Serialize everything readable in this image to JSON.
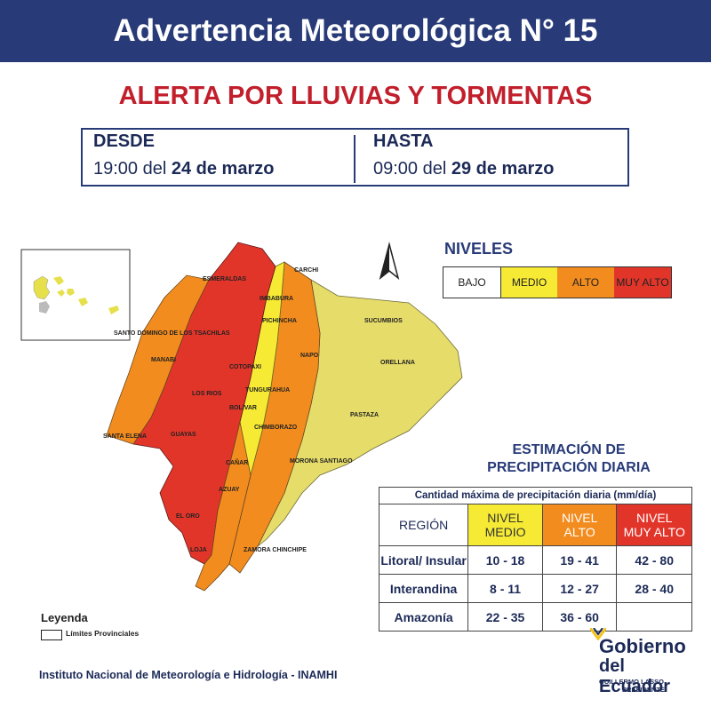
{
  "header": {
    "title": "Advertencia Meteorológica N° 15"
  },
  "alert": {
    "title": "ALERTA POR LLUVIAS Y TORMENTAS"
  },
  "dates": {
    "from_label": "DESDE",
    "from_time": "19:00 del ",
    "from_date": "24 de marzo",
    "to_label": "HASTA",
    "to_time": "09:00 del ",
    "to_date": "29 de marzo"
  },
  "niveles": {
    "title": "NIVELES",
    "levels": [
      {
        "label": "BAJO",
        "color": "#ffffff"
      },
      {
        "label": "MEDIO",
        "color": "#f6ea35"
      },
      {
        "label": "ALTO",
        "color": "#f28c1e"
      },
      {
        "label": "MUY ALTO",
        "color": "#e2352a"
      }
    ]
  },
  "provinces": {
    "carchi": "CARCHI",
    "esmeraldas": "ESMERALDAS",
    "imbabura": "IMBABURA",
    "sucumbios": "SUCUMBIOS",
    "pichincha": "PICHINCHA",
    "santo_domingo": "SANTO DOMINGO DE LOS TSACHILAS",
    "napo": "NAPO",
    "orellana": "ORELLANA",
    "manabi": "MANABI",
    "cotopaxi": "COTOPAXI",
    "tungurahua": "TUNGURAHUA",
    "los_rios": "LOS RIOS",
    "bolivar": "BOLIVAR",
    "pastaza": "PASTAZA",
    "chimborazo": "CHIMBORAZO",
    "santa_elena": "SANTA ELENA",
    "guayas": "GUAYAS",
    "morona": "MORONA SANTIAGO",
    "canar": "CAÑAR",
    "azuay": "AZUAY",
    "el_oro": "EL ORO",
    "loja": "LOJA",
    "zamora": "ZAMORA CHINCHIPE"
  },
  "estimacion": {
    "title_line1": "ESTIMACIÓN DE",
    "title_line2": "PRECIPITACIÓN DIARIA",
    "caption": "Cantidad máxima de precipitación diaria (mm/día)",
    "region_header": "REGIÓN",
    "col_headers": [
      {
        "line1": "NIVEL",
        "line2": "MEDIO",
        "color": "#f6ea35",
        "text_color": "#333333"
      },
      {
        "line1": "NIVEL",
        "line2": "ALTO",
        "color": "#f28c1e",
        "text_color": "#ffffff"
      },
      {
        "line1": "NIVEL",
        "line2": "MUY ALTO",
        "color": "#e2352a",
        "text_color": "#ffffff"
      }
    ],
    "rows": [
      {
        "region": "Litoral/ Insular",
        "medio": "10 - 18",
        "alto": "19 - 41",
        "muy_alto": "42 - 80"
      },
      {
        "region": "Interandina",
        "medio": "8 - 11",
        "alto": "12 - 27",
        "muy_alto": "28 - 40"
      },
      {
        "region": "Amazonía",
        "medio": "22 - 35",
        "alto": "36 - 60",
        "muy_alto": ""
      }
    ]
  },
  "legend": {
    "title": "Leyenda",
    "item": "Límites Provinciales"
  },
  "footer": {
    "org": "Instituto Nacional de Meteorología e Hidrología - INAMHI"
  },
  "logo": {
    "line1": "Gobierno",
    "line2": "del Ecuador",
    "line3": "GUILLERMO LASSO",
    "line4": "PRESIDENTE"
  },
  "colors": {
    "navy": "#283b78",
    "red_title": "#c21f2c",
    "yellow": "#f6ea35",
    "pale_yellow": "#e6dc6a",
    "orange": "#f28c1e",
    "red": "#e2352a"
  }
}
